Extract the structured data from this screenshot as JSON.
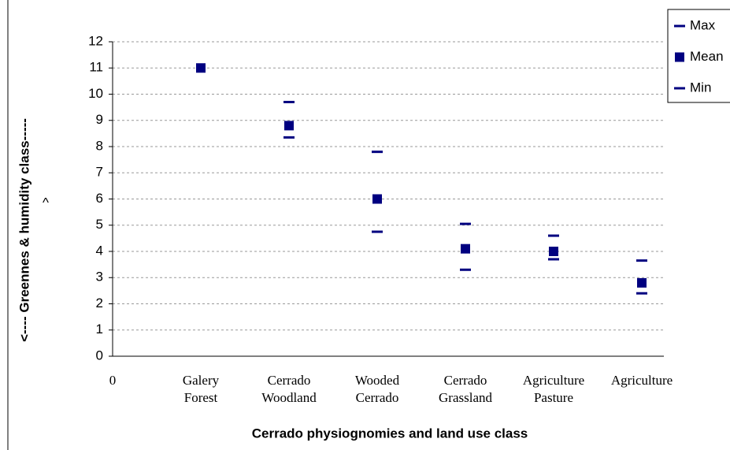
{
  "chart_data": {
    "type": "scatter",
    "x_label": "Cerrado physiognomies and land use class",
    "y_label": "<---- Greennes & humidity class-----",
    "annotation": "^",
    "categories": [
      "0",
      "Galery\nForest",
      "Cerrado\nWoodland",
      "Wooded\nCerrado",
      "Cerrado\nGrassland",
      "Agriculture\nPasture",
      "Agriculture"
    ],
    "series": [
      {
        "name": "Max",
        "color": "#000080",
        "marker": "dash",
        "values": [
          null,
          null,
          9.7,
          7.8,
          5.05,
          4.6,
          3.65
        ]
      },
      {
        "name": "Mean",
        "color": "#000080",
        "marker": "square",
        "values": [
          null,
          11,
          8.8,
          6.0,
          4.1,
          4.0,
          2.8
        ]
      },
      {
        "name": "Min",
        "color": "#000080",
        "marker": "dash",
        "values": [
          null,
          null,
          8.35,
          4.75,
          3.3,
          3.7,
          2.4
        ]
      }
    ],
    "ylim": [
      0,
      12
    ],
    "yticks": [
      0,
      1,
      2,
      3,
      4,
      5,
      6,
      7,
      8,
      9,
      10,
      11,
      12
    ],
    "grid": true,
    "legend": "top-right"
  }
}
